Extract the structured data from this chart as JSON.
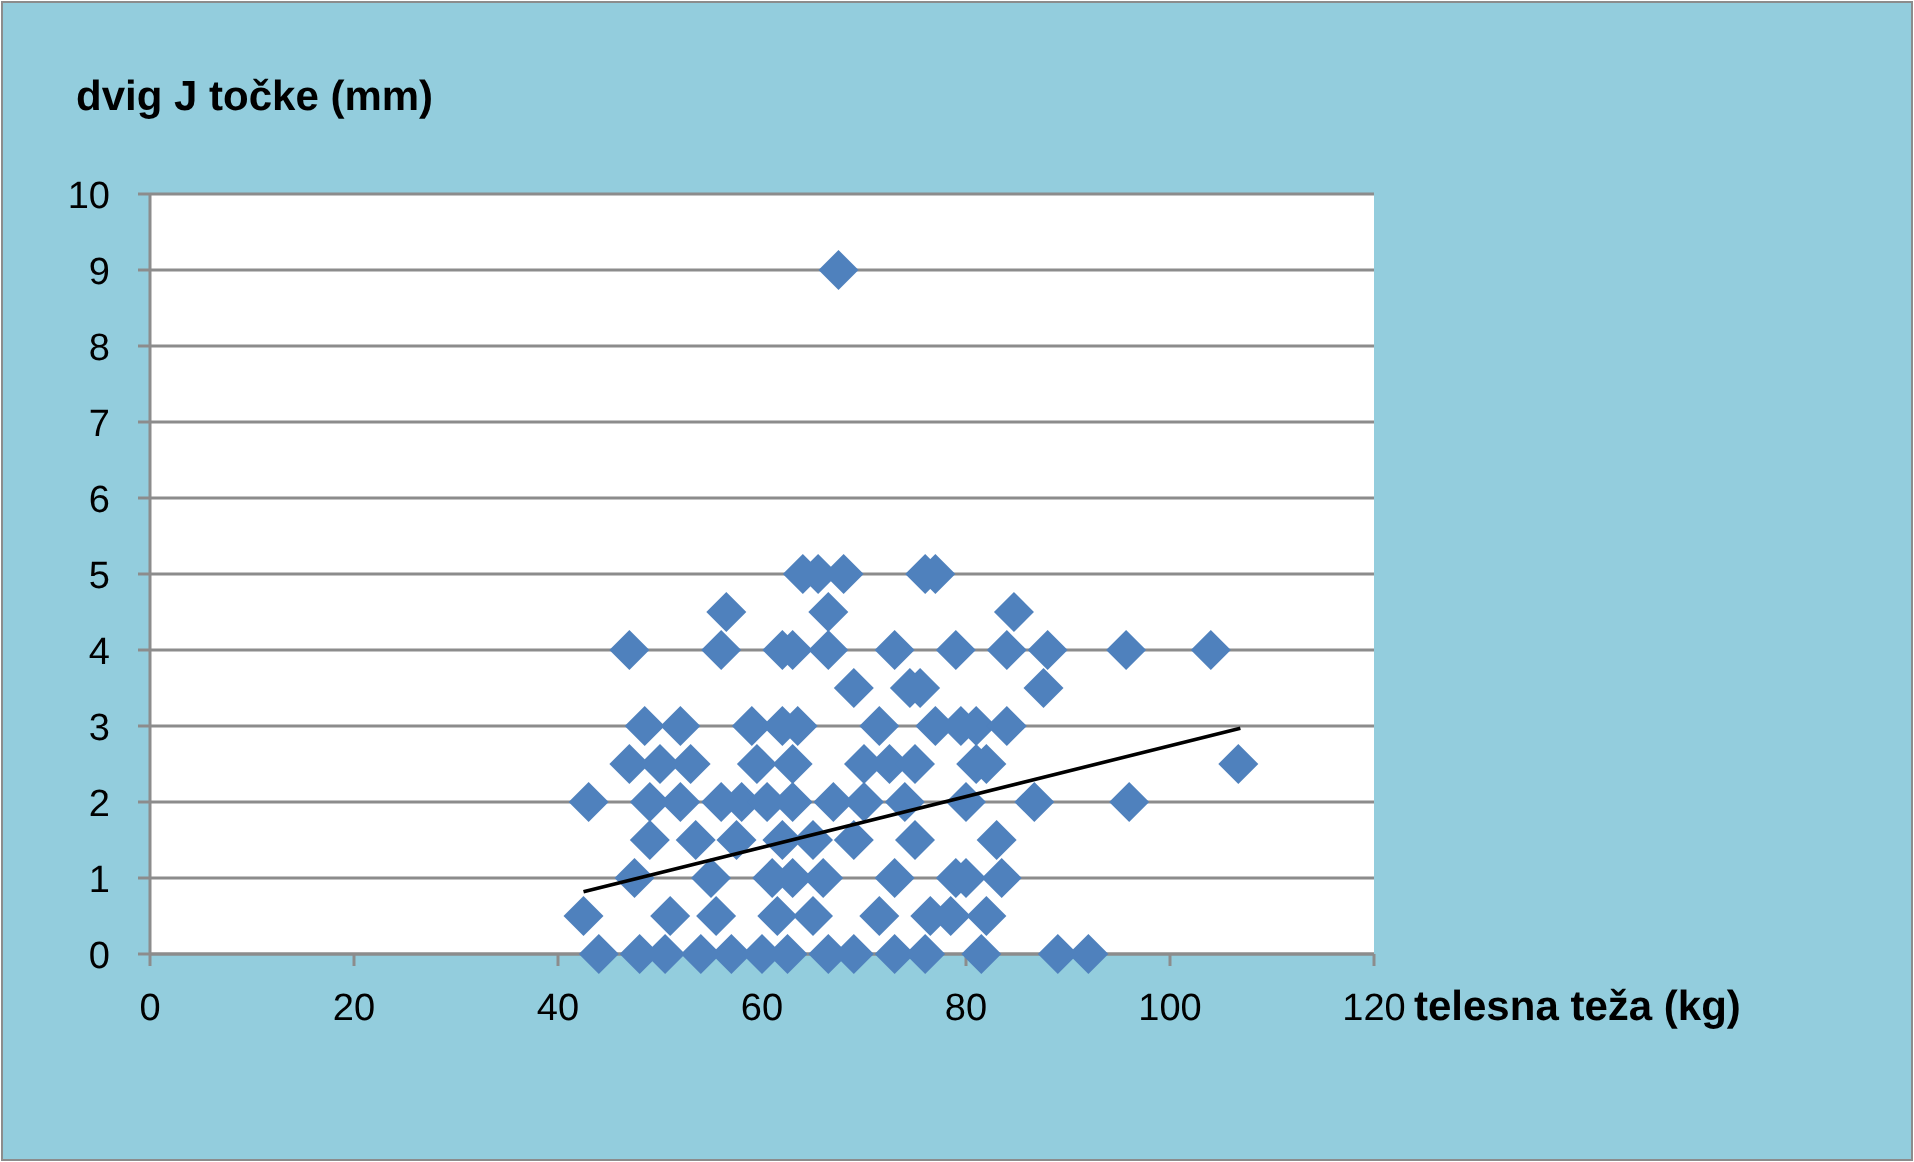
{
  "chart_data": {
    "type": "scatter",
    "title": "dvig J točke (mm)",
    "xlabel": "telesna teža (kg)",
    "xlim": [
      0,
      120
    ],
    "xticks": [
      0,
      20,
      40,
      60,
      80,
      100,
      120
    ],
    "ylim": [
      0,
      10
    ],
    "yticks": [
      0,
      1,
      2,
      3,
      4,
      5,
      6,
      7,
      8,
      9,
      10
    ],
    "grid": "y",
    "marker": "diamond",
    "series": [
      {
        "color": "#4f81bd",
        "x": [
          67.5,
          64,
          65.5,
          68,
          76,
          77,
          56.5,
          66.5,
          84.7,
          47,
          56,
          62,
          63,
          66.5,
          73,
          79,
          84,
          88,
          95.7,
          104,
          69,
          74.5,
          75.5,
          87.6,
          48.5,
          52,
          59,
          62,
          63.5,
          71.5,
          77,
          79.5,
          81,
          84,
          47,
          50,
          53,
          59.5,
          63,
          70,
          72.5,
          75,
          81,
          82,
          106.7,
          43,
          49,
          52,
          56,
          58,
          60.5,
          63,
          67,
          70,
          74,
          80,
          86.7,
          96,
          49,
          53.5,
          57.5,
          62,
          65,
          69,
          75,
          83,
          47.5,
          55,
          61,
          63,
          66,
          73,
          79,
          80,
          83.5,
          42.5,
          51,
          55.5,
          61.5,
          65,
          71.5,
          76.5,
          78.5,
          82,
          44,
          48,
          50.5,
          54,
          57,
          60,
          62.5,
          66.5,
          69,
          73,
          76,
          81.5,
          89,
          92
        ],
        "values": [
          9,
          5,
          5,
          5,
          5,
          5,
          4.5,
          4.5,
          4.5,
          4,
          4,
          4,
          4,
          4,
          4,
          4,
          4,
          4,
          4,
          4,
          3.5,
          3.5,
          3.5,
          3.5,
          3,
          3,
          3,
          3,
          3,
          3,
          3,
          3,
          3,
          3,
          2.5,
          2.5,
          2.5,
          2.5,
          2.5,
          2.5,
          2.5,
          2.5,
          2.5,
          2.5,
          2.5,
          2,
          2,
          2,
          2,
          2,
          2,
          2,
          2,
          2,
          2,
          2,
          2,
          2,
          1.5,
          1.5,
          1.5,
          1.5,
          1.5,
          1.5,
          1.5,
          1.5,
          1,
          1,
          1,
          1,
          1,
          1,
          1,
          1,
          1,
          0.5,
          0.5,
          0.5,
          0.5,
          0.5,
          0.5,
          0.5,
          0.5,
          0.5,
          0,
          0,
          0,
          0,
          0,
          0,
          0,
          0,
          0,
          0,
          0,
          0,
          0,
          0
        ]
      },
      {
        "type": "line",
        "color": "#000000",
        "marker": "none",
        "x": [
          42.5,
          106.9
        ],
        "values": [
          0.82,
          2.97
        ]
      }
    ]
  }
}
